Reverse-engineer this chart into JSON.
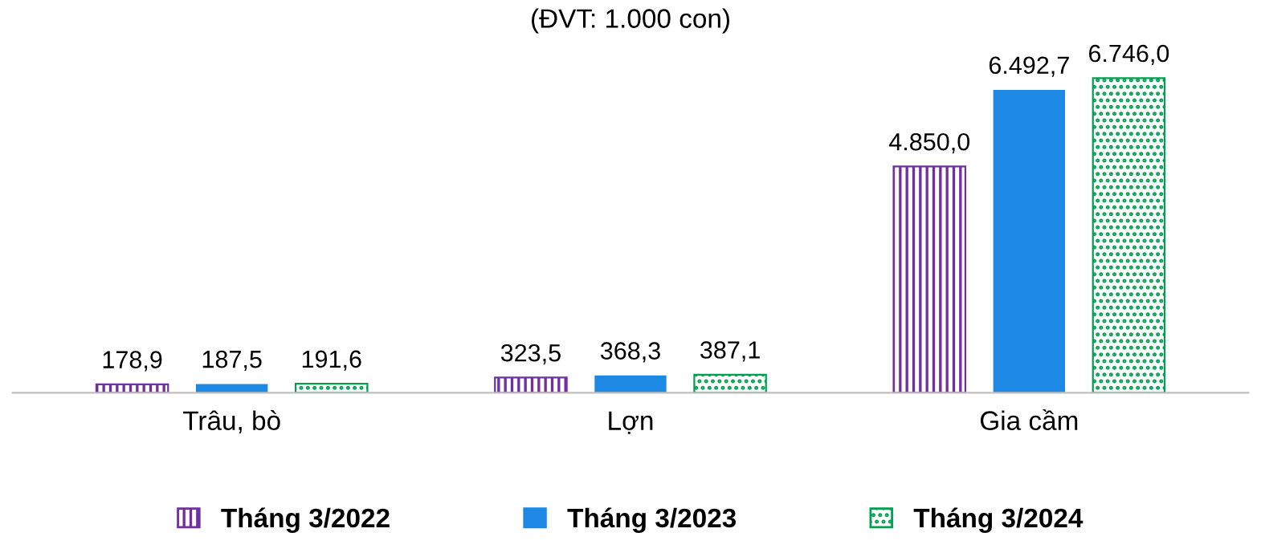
{
  "chart_data": {
    "type": "bar",
    "title": "(ĐVT: 1.000 con)",
    "categories": [
      "Trâu, bò",
      "Lợn",
      "Gia cầm"
    ],
    "series": [
      {
        "name": "Tháng 3/2022",
        "color": "#7030a0",
        "values": [
          178.9,
          323.5,
          4850.0
        ],
        "value_labels": [
          "178,9",
          "323,5",
          "4.850,0"
        ]
      },
      {
        "name": "Tháng 3/2023",
        "color": "#1e88e5",
        "values": [
          187.5,
          368.3,
          6492.7
        ],
        "value_labels": [
          "187,5",
          "368,3",
          "6.492,7"
        ]
      },
      {
        "name": "Tháng 3/2024",
        "color": "#00a050",
        "values": [
          191.6,
          387.1,
          6746.0
        ],
        "value_labels": [
          "191,6",
          "387,1",
          "6.746,0"
        ]
      }
    ],
    "legend": "bottom",
    "grid": false
  }
}
